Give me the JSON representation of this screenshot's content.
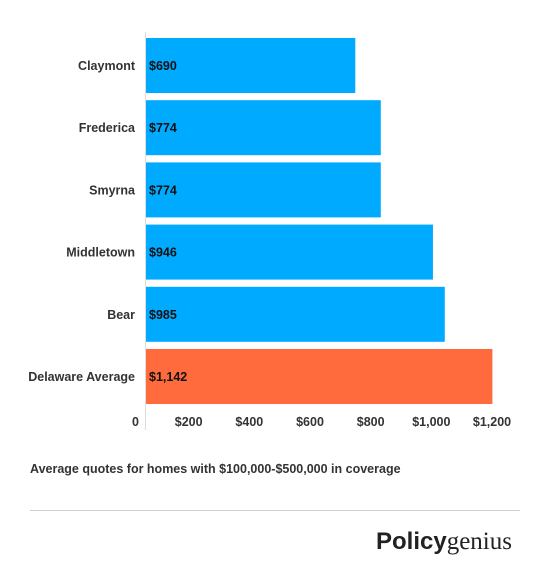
{
  "chart_data": {
    "type": "bar",
    "orientation": "horizontal",
    "categories": [
      "Claymont",
      "Frederica",
      "Smyrna",
      "Middletown",
      "Bear",
      "Delaware Average"
    ],
    "values": [
      690,
      774,
      774,
      946,
      985,
      1142
    ],
    "data_labels": [
      "$690",
      "$774",
      "$774",
      "$946",
      "$985",
      "$1,142"
    ],
    "bar_colors": [
      "#00aaff",
      "#00aaff",
      "#00aaff",
      "#00aaff",
      "#00aaff",
      "#ff6b3d"
    ],
    "x_ticks": [
      0,
      200,
      400,
      600,
      800,
      1000,
      1200
    ],
    "x_tick_labels": [
      "0",
      "$200",
      "$400",
      "$600",
      "$800",
      "$1,000",
      "$1,200"
    ],
    "xlim": [
      0,
      1200
    ],
    "grid": false
  },
  "caption": "Average quotes for homes with $100,000-$500,000 in coverage",
  "logo": {
    "part1": "Policy",
    "part2": "genius"
  }
}
